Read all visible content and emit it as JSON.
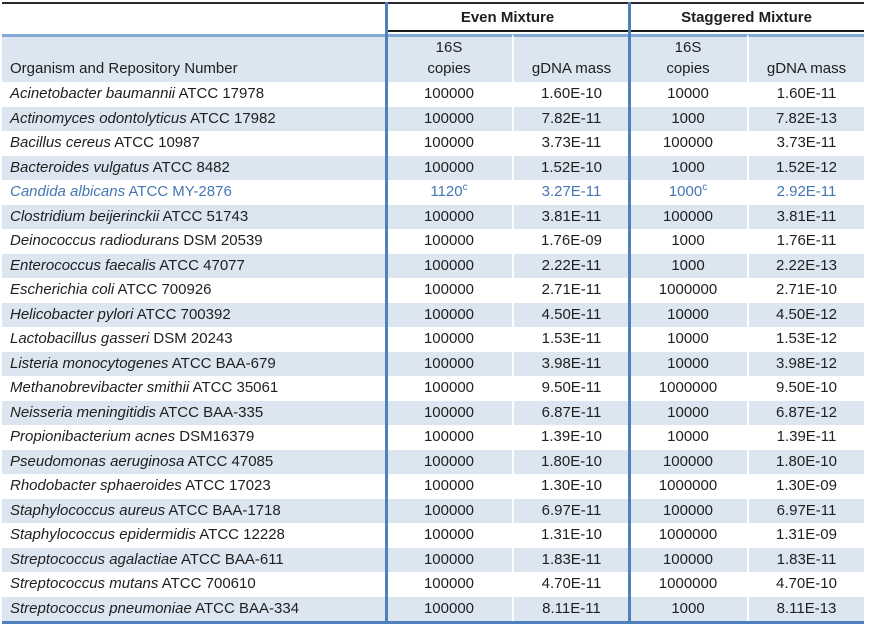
{
  "table": {
    "headers": {
      "even_mixture": "Even Mixture",
      "staggered_mixture": "Staggered Mixture",
      "organism": "Organism and Repository Number",
      "copies_line1": "16S",
      "copies_line2": "copies",
      "gdna_mass": "gDNA mass"
    },
    "footnote_marker": "c",
    "colors": {
      "band": "#DCE6F1",
      "section_border": "#4F81BD",
      "header_rule": "#85A9D6",
      "top_border": "#2B2B2B",
      "highlight_text": "#4777B3",
      "text": "#1F1F1F"
    },
    "rows": [
      {
        "name": "Acinetobacter baumannii",
        "repo": "ATCC 17978",
        "even_copies": "100000",
        "even_sup": "",
        "even_gdna": "1.60E-10",
        "stag_copies": "10000",
        "stag_sup": "",
        "stag_gdna": "1.60E-11",
        "blue": false
      },
      {
        "name": "Actinomyces odontolyticus",
        "repo": "ATCC 17982",
        "even_copies": "100000",
        "even_sup": "",
        "even_gdna": "7.82E-11",
        "stag_copies": "1000",
        "stag_sup": "",
        "stag_gdna": "7.82E-13",
        "blue": false
      },
      {
        "name": "Bacillus cereus",
        "repo": "ATCC 10987",
        "even_copies": "100000",
        "even_sup": "",
        "even_gdna": "3.73E-11",
        "stag_copies": "100000",
        "stag_sup": "",
        "stag_gdna": "3.73E-11",
        "blue": false
      },
      {
        "name": "Bacteroides vulgatus",
        "repo": "ATCC 8482",
        "even_copies": "100000",
        "even_sup": "",
        "even_gdna": "1.52E-10",
        "stag_copies": "1000",
        "stag_sup": "",
        "stag_gdna": "1.52E-12",
        "blue": false
      },
      {
        "name": "Candida albicans",
        "repo": "ATCC MY-2876",
        "even_copies": "1120",
        "even_sup": "c",
        "even_gdna": "3.27E-11",
        "stag_copies": "1000",
        "stag_sup": "c",
        "stag_gdna": "2.92E-11",
        "blue": true
      },
      {
        "name": "Clostridium beijerinckii",
        "repo": "ATCC 51743",
        "even_copies": "100000",
        "even_sup": "",
        "even_gdna": "3.81E-11",
        "stag_copies": "100000",
        "stag_sup": "",
        "stag_gdna": "3.81E-11",
        "blue": false
      },
      {
        "name": "Deinococcus radiodurans",
        "repo": "DSM 20539",
        "even_copies": "100000",
        "even_sup": "",
        "even_gdna": "1.76E-09",
        "stag_copies": "1000",
        "stag_sup": "",
        "stag_gdna": "1.76E-11",
        "blue": false
      },
      {
        "name": "Enterococcus faecalis",
        "repo": "ATCC 47077",
        "even_copies": "100000",
        "even_sup": "",
        "even_gdna": "2.22E-11",
        "stag_copies": "1000",
        "stag_sup": "",
        "stag_gdna": "2.22E-13",
        "blue": false
      },
      {
        "name": "Escherichia coli",
        "repo": "ATCC 700926",
        "even_copies": "100000",
        "even_sup": "",
        "even_gdna": "2.71E-11",
        "stag_copies": "1000000",
        "stag_sup": "",
        "stag_gdna": "2.71E-10",
        "blue": false
      },
      {
        "name": "Helicobacter pylori",
        "repo": "ATCC 700392",
        "even_copies": "100000",
        "even_sup": "",
        "even_gdna": "4.50E-11",
        "stag_copies": "10000",
        "stag_sup": "",
        "stag_gdna": "4.50E-12",
        "blue": false
      },
      {
        "name": "Lactobacillus gasseri",
        "repo": "DSM 20243",
        "even_copies": "100000",
        "even_sup": "",
        "even_gdna": "1.53E-11",
        "stag_copies": "10000",
        "stag_sup": "",
        "stag_gdna": "1.53E-12",
        "blue": false
      },
      {
        "name": "Listeria monocytogenes",
        "repo": "ATCC BAA-679",
        "even_copies": "100000",
        "even_sup": "",
        "even_gdna": "3.98E-11",
        "stag_copies": "10000",
        "stag_sup": "",
        "stag_gdna": "3.98E-12",
        "blue": false
      },
      {
        "name": "Methanobrevibacter smithii",
        "repo": "ATCC 35061",
        "even_copies": "100000",
        "even_sup": "",
        "even_gdna": "9.50E-11",
        "stag_copies": "1000000",
        "stag_sup": "",
        "stag_gdna": "9.50E-10",
        "blue": false
      },
      {
        "name": "Neisseria meningitidis",
        "repo": "ATCC BAA-335",
        "even_copies": "100000",
        "even_sup": "",
        "even_gdna": "6.87E-11",
        "stag_copies": "10000",
        "stag_sup": "",
        "stag_gdna": "6.87E-12",
        "blue": false
      },
      {
        "name": "Propionibacterium acnes",
        "repo": "DSM16379",
        "even_copies": "100000",
        "even_sup": "",
        "even_gdna": "1.39E-10",
        "stag_copies": "10000",
        "stag_sup": "",
        "stag_gdna": "1.39E-11",
        "blue": false
      },
      {
        "name": "Pseudomonas aeruginosa",
        "repo": "ATCC 47085",
        "even_copies": "100000",
        "even_sup": "",
        "even_gdna": "1.80E-10",
        "stag_copies": "100000",
        "stag_sup": "",
        "stag_gdna": "1.80E-10",
        "blue": false
      },
      {
        "name": "Rhodobacter sphaeroides",
        "repo": "ATCC 17023",
        "even_copies": "100000",
        "even_sup": "",
        "even_gdna": "1.30E-10",
        "stag_copies": "1000000",
        "stag_sup": "",
        "stag_gdna": "1.30E-09",
        "blue": false
      },
      {
        "name": "Staphylococcus aureus",
        "repo": "ATCC BAA-1718",
        "even_copies": "100000",
        "even_sup": "",
        "even_gdna": "6.97E-11",
        "stag_copies": "100000",
        "stag_sup": "",
        "stag_gdna": "6.97E-11",
        "blue": false
      },
      {
        "name": "Staphylococcus epidermidis",
        "repo": "ATCC 12228",
        "even_copies": "100000",
        "even_sup": "",
        "even_gdna": "1.31E-10",
        "stag_copies": "1000000",
        "stag_sup": "",
        "stag_gdna": "1.31E-09",
        "blue": false
      },
      {
        "name": "Streptococcus agalactiae",
        "repo": "ATCC BAA-611",
        "even_copies": "100000",
        "even_sup": "",
        "even_gdna": "1.83E-11",
        "stag_copies": "100000",
        "stag_sup": "",
        "stag_gdna": "1.83E-11",
        "blue": false
      },
      {
        "name": "Streptococcus mutans",
        "repo": "ATCC 700610",
        "even_copies": "100000",
        "even_sup": "",
        "even_gdna": "4.70E-11",
        "stag_copies": "1000000",
        "stag_sup": "",
        "stag_gdna": "4.70E-10",
        "blue": false
      },
      {
        "name": "Streptococcus pneumoniae",
        "repo": "ATCC BAA-334",
        "even_copies": "100000",
        "even_sup": "",
        "even_gdna": "8.11E-11",
        "stag_copies": "1000",
        "stag_sup": "",
        "stag_gdna": "8.11E-13",
        "blue": false
      }
    ]
  }
}
